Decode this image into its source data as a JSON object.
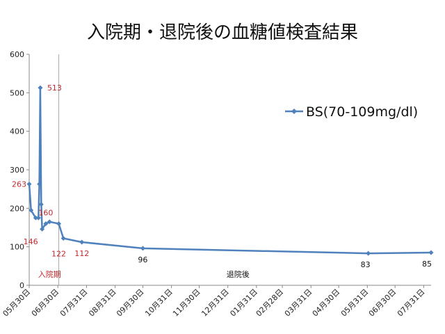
{
  "title": "入院期・退院後の血糖値検査結果",
  "chart_data": {
    "type": "line",
    "title": "入院期・退院後の血糖値検査結果",
    "xlabel": "",
    "ylabel": "",
    "ylim": [
      0,
      600
    ],
    "yticks": [
      0,
      100,
      200,
      300,
      400,
      500,
      600
    ],
    "xlim": [
      "2014-05-30",
      "2015-08-08"
    ],
    "x_tick_labels": [
      "05月30日",
      "06月30日",
      "07月31日",
      "08月31日",
      "09月30日",
      "10月31日",
      "11月30日",
      "12月31日",
      "01月31日",
      "02月28日",
      "03月31日",
      "04月30日",
      "05月31日",
      "06月30日",
      "07月31日"
    ],
    "x_tick_dates": [
      "2014-05-30",
      "2014-06-30",
      "2014-07-31",
      "2014-08-31",
      "2014-09-30",
      "2014-10-31",
      "2014-11-30",
      "2014-12-31",
      "2015-01-31",
      "2015-02-28",
      "2015-03-31",
      "2015-04-30",
      "2015-05-31",
      "2015-06-30",
      "2015-07-31"
    ],
    "grid": false,
    "legend_position": "right",
    "series": [
      {
        "name": "BS(70-109mg/dl)",
        "color": "#4F81BD",
        "x": [
          "2014-05-30",
          "2014-06-01",
          "2014-06-06",
          "2014-06-09",
          "2014-06-10",
          "2014-06-11",
          "2014-06-12",
          "2014-06-13",
          "2014-06-17",
          "2014-06-21",
          "2014-07-01",
          "2014-07-06",
          "2014-07-26",
          "2014-09-30",
          "2015-06-01",
          "2015-08-08"
        ],
        "values": [
          263,
          195,
          175,
          175,
          263,
          513,
          210,
          146,
          160,
          165,
          160,
          122,
          112,
          96,
          83,
          85
        ]
      }
    ],
    "data_labels": [
      {
        "x": "2014-05-30",
        "y": 263,
        "text": "263"
      },
      {
        "x": "2014-06-11",
        "y": 513,
        "text": "513"
      },
      {
        "x": "2014-06-17",
        "y": 160,
        "text": "160"
      },
      {
        "x": "2014-06-13",
        "y": 146,
        "text": "146"
      },
      {
        "x": "2014-07-01",
        "y": 122,
        "text": "122"
      },
      {
        "x": "2014-07-26",
        "y": 112,
        "text": "112"
      },
      {
        "x": "2014-09-30",
        "y": 96,
        "text": "96"
      },
      {
        "x": "2015-06-01",
        "y": 83,
        "text": "83"
      },
      {
        "x": "2015-08-08",
        "y": 85,
        "text": "85"
      }
    ],
    "divider_x": "2014-07-01",
    "regions": [
      {
        "text": "入院期",
        "color": "#C0282D"
      },
      {
        "text": "退院後",
        "color": "#111111"
      }
    ],
    "colors": {
      "label_red": "#C0282D",
      "label_dark": "#111111",
      "axis": "#888888"
    }
  }
}
